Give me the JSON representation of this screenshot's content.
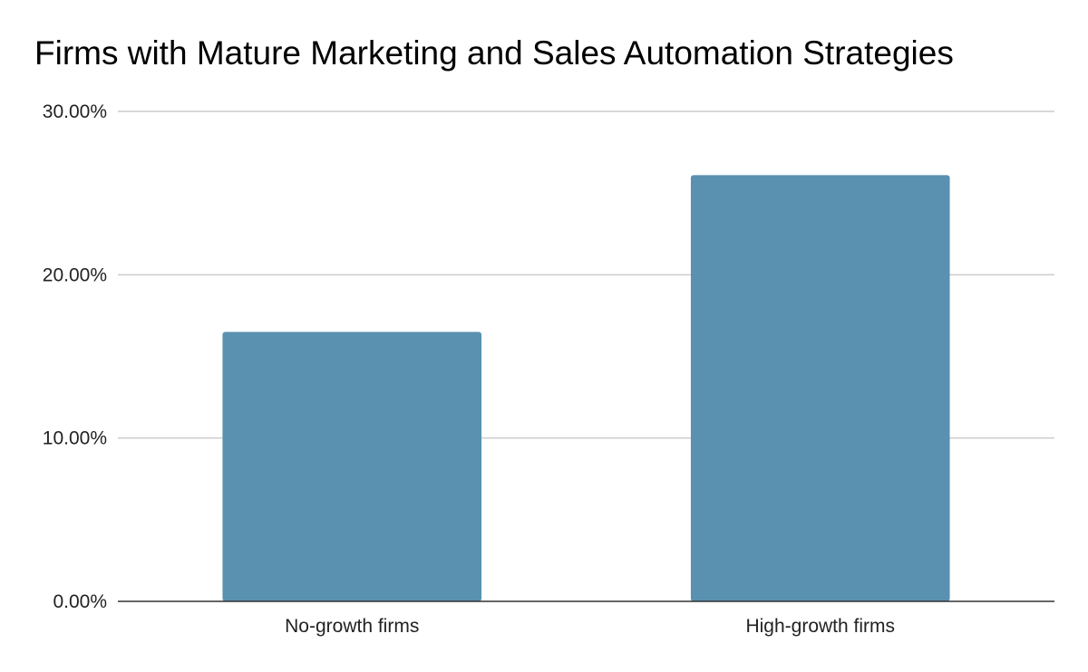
{
  "chart_data": {
    "type": "bar",
    "title": "Firms with Mature Marketing and Sales Automation Strategies",
    "categories": [
      "No-growth firms",
      "High-growth firms"
    ],
    "values": [
      16.5,
      26.1
    ],
    "ylim": [
      0,
      30
    ],
    "yticks": [
      0,
      10,
      20,
      30
    ],
    "ytick_labels": [
      "0.00%",
      "10.00%",
      "20.00%",
      "30.00%"
    ],
    "xlabel": "",
    "ylabel": "",
    "grid": true,
    "legend": "none",
    "bar_color": "#5a91b0",
    "grid_color": "#cccccc",
    "axis_color": "#333333"
  }
}
